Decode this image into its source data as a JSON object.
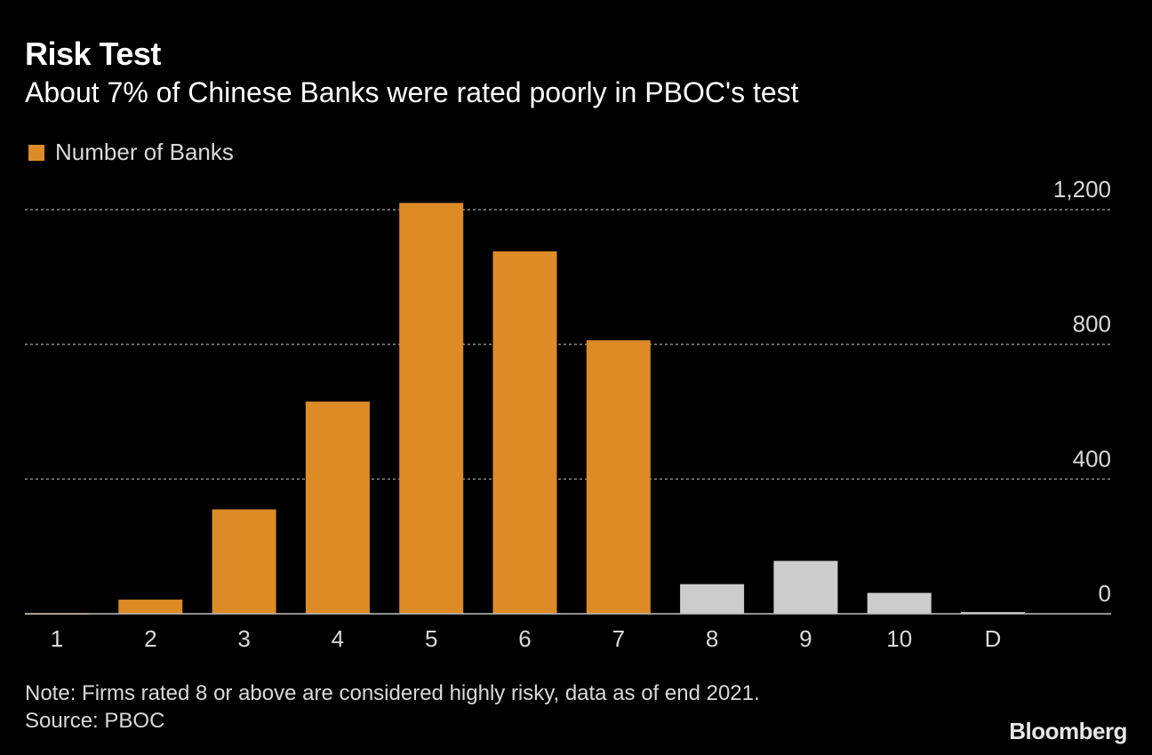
{
  "header": {
    "title": "Risk Test",
    "subtitle": "About 7% of Chinese Banks were rated poorly in PBOC's test"
  },
  "legend": {
    "label": "Number of Banks",
    "color": "#dc8b27"
  },
  "footer": {
    "note": "Note: Firms rated 8 or above are considered highly risky, data as of end 2021.",
    "source": "Source: PBOC",
    "brand": "Bloomberg"
  },
  "colors": {
    "primary": "#dc8b27",
    "highlight_risky": "#cccccc",
    "grid": "#8c8c8c",
    "axis_text": "#d9d9d9"
  },
  "chart_data": {
    "type": "bar",
    "categories": [
      "1",
      "2",
      "3",
      "4",
      "5",
      "6",
      "7",
      "8",
      "9",
      "10",
      "D"
    ],
    "series": [
      {
        "name": "Number of Banks",
        "values": [
          2,
          42,
          310,
          630,
          1220,
          1076,
          812,
          88,
          157,
          62,
          5
        ]
      }
    ],
    "bar_colors": [
      "#dc8b27",
      "#dc8b27",
      "#dc8b27",
      "#dc8b27",
      "#dc8b27",
      "#dc8b27",
      "#dc8b27",
      "#cccccc",
      "#cccccc",
      "#cccccc",
      "#cccccc"
    ],
    "y_ticks": [
      0,
      400,
      800,
      1200
    ],
    "y_tick_labels": [
      "0",
      "400",
      "800",
      "1,200"
    ],
    "ylim": [
      0,
      1200
    ],
    "y_axis_side": "right",
    "grid": true,
    "legend_position": "top-left"
  }
}
